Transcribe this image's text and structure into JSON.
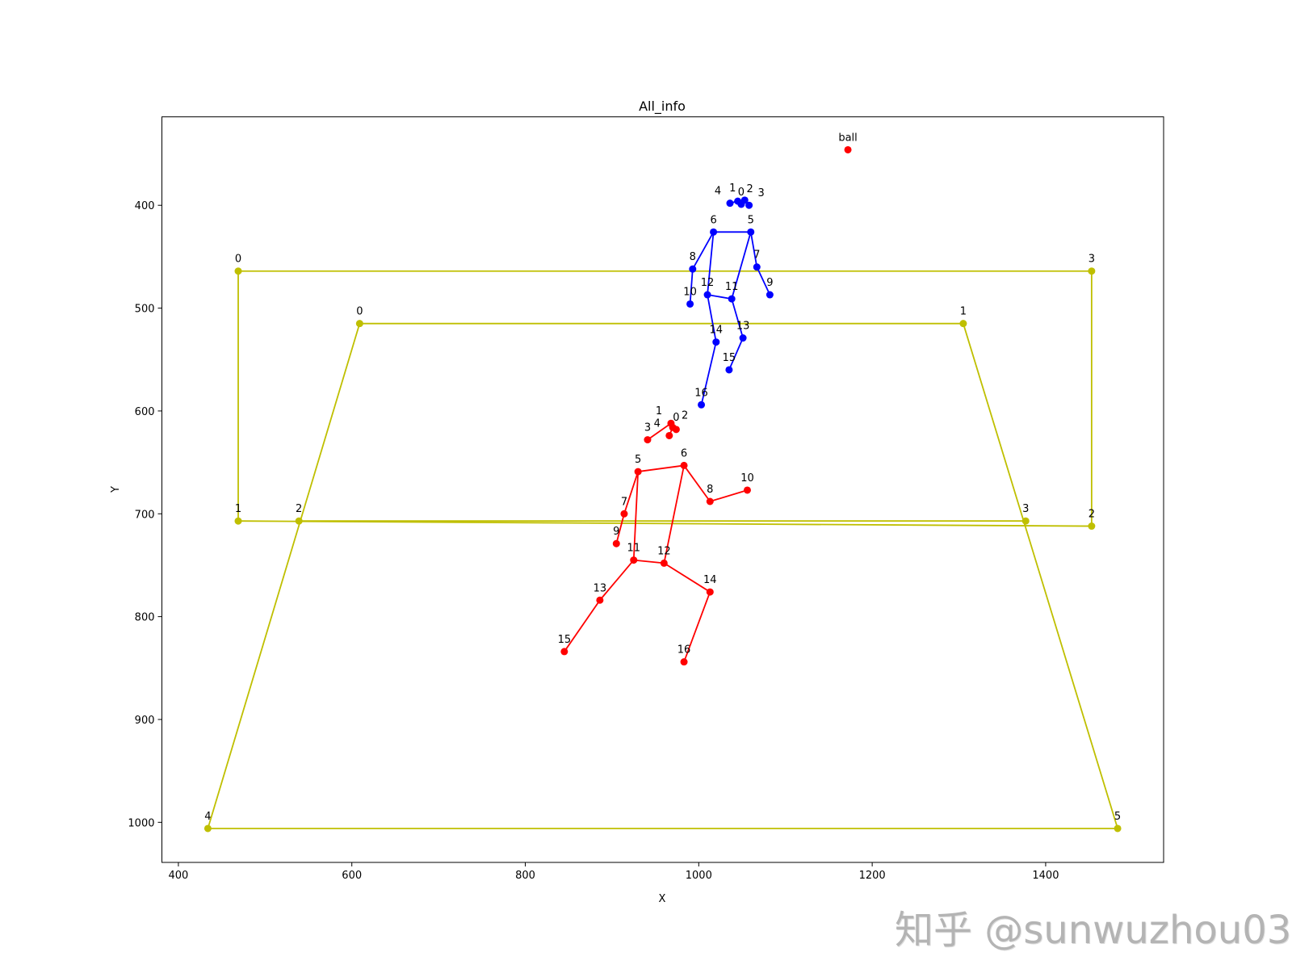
{
  "chart_data": {
    "type": "scatter",
    "title": "All_info",
    "xlabel": "X",
    "ylabel": "Y",
    "xlim": [
      381,
      1536
    ],
    "ylim": [
      1039,
      314
    ],
    "y_inverted": true,
    "grid": false,
    "xticks": [
      400,
      600,
      800,
      1000,
      1200,
      1400
    ],
    "yticks": [
      400,
      500,
      600,
      700,
      800,
      900,
      1000
    ],
    "colors": {
      "court": "#bfbf00",
      "player_blue": "#0000ff",
      "player_red": "#ff0000",
      "ball": "#ff0000"
    },
    "court_outer": {
      "points": [
        {
          "label": "0",
          "x": 469,
          "y": 464
        },
        {
          "label": "1",
          "x": 469,
          "y": 707
        },
        {
          "label": "2",
          "x": 1453,
          "y": 712
        },
        {
          "label": "3",
          "x": 1453,
          "y": 464
        }
      ],
      "edges": [
        [
          0,
          1
        ],
        [
          1,
          2
        ],
        [
          2,
          3
        ],
        [
          3,
          0
        ]
      ]
    },
    "court_inner": {
      "points": [
        {
          "label": "0",
          "x": 609,
          "y": 515
        },
        {
          "label": "1",
          "x": 1305,
          "y": 515
        },
        {
          "label": "2",
          "x": 539,
          "y": 707
        },
        {
          "label": "3",
          "x": 1377,
          "y": 707
        },
        {
          "label": "4",
          "x": 434,
          "y": 1006
        },
        {
          "label": "5",
          "x": 1483,
          "y": 1006
        }
      ],
      "edges": [
        [
          0,
          1
        ],
        [
          0,
          4
        ],
        [
          1,
          5
        ],
        [
          4,
          5
        ],
        [
          2,
          3
        ]
      ]
    },
    "ball": {
      "label": "ball",
      "x": 1172,
      "y": 346
    },
    "player_blue": {
      "points": [
        {
          "label": "0",
          "x": 1049,
          "y": 399
        },
        {
          "label": "1",
          "x": 1053,
          "y": 395
        },
        {
          "label": "2",
          "x": 1045,
          "y": 396
        },
        {
          "label": "3",
          "x": 1058,
          "y": 400
        },
        {
          "label": "4",
          "x": 1036,
          "y": 398
        },
        {
          "label": "5",
          "x": 1060,
          "y": 426
        },
        {
          "label": "6",
          "x": 1017,
          "y": 426
        },
        {
          "label": "7",
          "x": 1067,
          "y": 460
        },
        {
          "label": "8",
          "x": 993,
          "y": 462
        },
        {
          "label": "9",
          "x": 1082,
          "y": 487
        },
        {
          "label": "10",
          "x": 990,
          "y": 496
        },
        {
          "label": "11",
          "x": 1038,
          "y": 491
        },
        {
          "label": "12",
          "x": 1010,
          "y": 487
        },
        {
          "label": "13",
          "x": 1051,
          "y": 529
        },
        {
          "label": "14",
          "x": 1020,
          "y": 533
        },
        {
          "label": "15",
          "x": 1035,
          "y": 560
        },
        {
          "label": "16",
          "x": 1003,
          "y": 594
        }
      ]
    },
    "player_red": {
      "points": [
        {
          "label": "0",
          "x": 974,
          "y": 618
        },
        {
          "label": "1",
          "x": 968,
          "y": 612
        },
        {
          "label": "2",
          "x": 970,
          "y": 616
        },
        {
          "label": "3",
          "x": 941,
          "y": 628
        },
        {
          "label": "4",
          "x": 966,
          "y": 624
        },
        {
          "label": "5",
          "x": 930,
          "y": 659
        },
        {
          "label": "6",
          "x": 983,
          "y": 653
        },
        {
          "label": "7",
          "x": 914,
          "y": 700
        },
        {
          "label": "8",
          "x": 1013,
          "y": 688
        },
        {
          "label": "9",
          "x": 905,
          "y": 729
        },
        {
          "label": "10",
          "x": 1056,
          "y": 677
        },
        {
          "label": "11",
          "x": 925,
          "y": 745
        },
        {
          "label": "12",
          "x": 960,
          "y": 748
        },
        {
          "label": "13",
          "x": 886,
          "y": 784
        },
        {
          "label": "14",
          "x": 1013,
          "y": 776
        },
        {
          "label": "15",
          "x": 845,
          "y": 834
        },
        {
          "label": "16",
          "x": 983,
          "y": 844
        }
      ]
    },
    "skeleton_edges": [
      [
        0,
        1
      ],
      [
        0,
        2
      ],
      [
        1,
        3
      ],
      [
        2,
        4
      ],
      [
        5,
        6
      ],
      [
        5,
        7
      ],
      [
        7,
        9
      ],
      [
        6,
        8
      ],
      [
        8,
        10
      ],
      [
        5,
        11
      ],
      [
        6,
        12
      ],
      [
        11,
        12
      ],
      [
        11,
        13
      ],
      [
        13,
        15
      ],
      [
        12,
        14
      ],
      [
        14,
        16
      ]
    ]
  },
  "watermark": "知乎 @sunwuzhou03"
}
